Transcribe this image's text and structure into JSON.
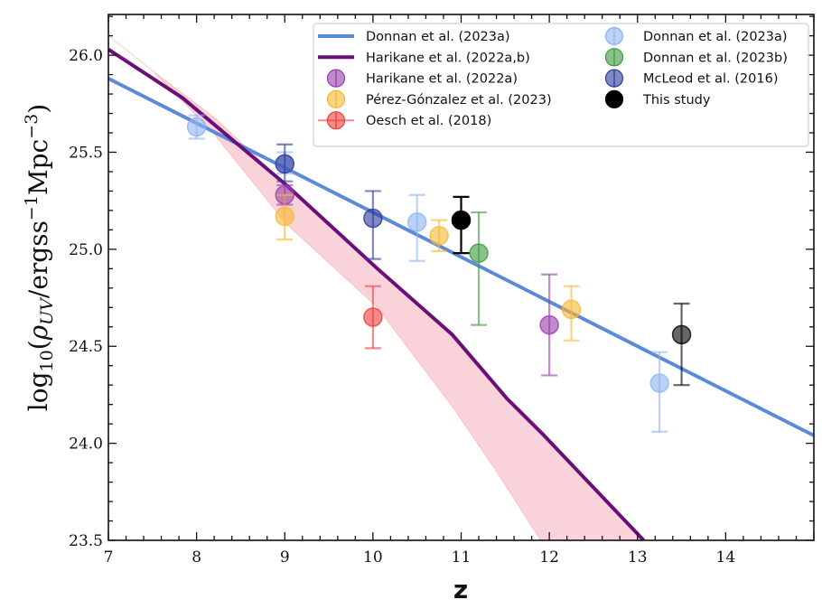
{
  "chart_data": {
    "type": "scatter",
    "title": "",
    "xlabel": "z",
    "ylabel": "log10(ρUV/ergss⁻¹Mpc⁻³)",
    "ylabel_parts": {
      "log": "log",
      "log_sub": "10",
      "open": "(",
      "rho": "ρ",
      "rho_sub": "UV",
      "unit": "/ergss",
      "exp1": "−1",
      "mpc": "Mpc",
      "exp2": "−3",
      "close": ")"
    },
    "xlim": [
      7,
      15
    ],
    "ylim": [
      23.5,
      26.21
    ],
    "xticks": [
      7,
      8,
      9,
      10,
      11,
      12,
      13,
      14
    ],
    "xtick_labels": [
      "7",
      "8",
      "9",
      "10",
      "11",
      "12",
      "13",
      "14"
    ],
    "yticks": [
      23.5,
      24.0,
      24.5,
      25.0,
      25.5,
      26.0
    ],
    "ytick_labels": [
      "23.5",
      "24.0",
      "24.5",
      "25.0",
      "25.5",
      "26.0"
    ],
    "grid": false,
    "legend_position": "top-right",
    "lines": [
      {
        "name": "Donnan et al. (2023a)",
        "color": "#5b8bd8",
        "points": [
          [
            7,
            25.88
          ],
          [
            15,
            24.04
          ]
        ]
      },
      {
        "name": "Harikane et al. (2022a,b)",
        "color": "#6a0f7a",
        "points": [
          [
            7,
            26.03
          ],
          [
            7.84,
            25.78
          ],
          [
            9.02,
            25.33
          ],
          [
            10.05,
            24.9
          ],
          [
            10.9,
            24.56
          ],
          [
            11.52,
            24.23
          ],
          [
            11.92,
            24.05
          ],
          [
            13.07,
            23.5
          ]
        ]
      }
    ],
    "band": {
      "name": "Harikane et al. (2022a,b) range",
      "color": "#f7b6c2",
      "upper": [
        [
          7,
          26.1
        ],
        [
          7.5,
          25.92
        ],
        [
          8.2,
          25.68
        ],
        [
          9.02,
          25.33
        ],
        [
          10.05,
          24.9
        ],
        [
          10.9,
          24.56
        ],
        [
          11.52,
          24.23
        ],
        [
          11.92,
          24.05
        ],
        [
          13.07,
          23.5
        ]
      ],
      "lower": [
        [
          7,
          26.1
        ],
        [
          7.5,
          25.92
        ],
        [
          8.17,
          25.61
        ],
        [
          9.02,
          25.13
        ],
        [
          10.05,
          24.7
        ],
        [
          10.9,
          24.19
        ],
        [
          11.41,
          23.85
        ],
        [
          11.9,
          23.5
        ]
      ]
    },
    "series": [
      {
        "name": "Harikane et al. (2022a)",
        "color": "#9a3cae",
        "points": [
          {
            "x": 9.0,
            "y": 25.28,
            "ylo": 25.23,
            "yhi": 25.33
          },
          {
            "x": 12.0,
            "y": 24.61,
            "ylo": 24.35,
            "yhi": 24.87
          }
        ]
      },
      {
        "name": "Pérez-Gónzalez et al. (2023)",
        "color": "#f7b733",
        "points": [
          {
            "x": 9.0,
            "y": 25.17,
            "ylo": 25.05,
            "yhi": 25.28
          },
          {
            "x": 10.75,
            "y": 25.07,
            "ylo": 24.99,
            "yhi": 25.15
          },
          {
            "x": 12.25,
            "y": 24.69,
            "ylo": 24.53,
            "yhi": 24.81
          }
        ]
      },
      {
        "name": "Oesch et al. (2018)",
        "color": "#f03a3a",
        "points": [
          {
            "x": 10.0,
            "y": 24.65,
            "ylo": 24.49,
            "yhi": 24.81
          }
        ]
      },
      {
        "name": "Donnan et al. (2023a)",
        "color": "#8fb3f0",
        "points": [
          {
            "x": 8.0,
            "y": 25.63,
            "ylo": 25.57,
            "yhi": 25.69
          },
          {
            "x": 9.0,
            "y": 25.44,
            "ylo": 25.39,
            "yhi": 25.5
          },
          {
            "x": 10.5,
            "y": 25.14,
            "ylo": 24.94,
            "yhi": 25.28
          },
          {
            "x": 13.25,
            "y": 24.31,
            "ylo": 24.06,
            "yhi": 24.47
          }
        ]
      },
      {
        "name": "Donnan et al. (2023b)",
        "color": "#3a9a3a",
        "points": [
          {
            "x": 11.2,
            "y": 24.98,
            "ylo": 24.61,
            "yhi": 25.19
          }
        ]
      },
      {
        "name": "McLeod et al. (2016)",
        "color": "#2d3a9e",
        "points": [
          {
            "x": 9.0,
            "y": 25.44,
            "ylo": 25.35,
            "yhi": 25.54
          },
          {
            "x": 10.0,
            "y": 25.16,
            "ylo": 24.95,
            "yhi": 25.3
          }
        ]
      },
      {
        "name": "This study",
        "color": "#000000",
        "points": [
          {
            "x": 11.0,
            "y": 25.15,
            "ylo": 24.98,
            "yhi": 25.27
          },
          {
            "x": 13.5,
            "y": 24.56,
            "ylo": 24.3,
            "yhi": 24.72
          }
        ]
      }
    ],
    "legend": [
      {
        "label": "Donnan et al. (2023a)",
        "kind": "line",
        "color": "#5b8bd8"
      },
      {
        "label": "Harikane et al. (2022a,b)",
        "kind": "line",
        "color": "#6a0f7a"
      },
      {
        "label": "Harikane et al. (2022a)",
        "kind": "marker",
        "color": "#9a3cae"
      },
      {
        "label": "Pérez-Gónzalez et al. (2023)",
        "kind": "marker",
        "color": "#f7b733"
      },
      {
        "label": "Oesch et al. (2018)",
        "kind": "marker-line",
        "color": "#f03a3a"
      },
      {
        "label": "Donnan et al. (2023a)",
        "kind": "marker",
        "color": "#8fb3f0"
      },
      {
        "label": "Donnan et al. (2023b)",
        "kind": "marker",
        "color": "#3a9a3a"
      },
      {
        "label": "McLeod et al. (2016)",
        "kind": "marker",
        "color": "#2d3a9e"
      },
      {
        "label": "This study",
        "kind": "marker-solid",
        "color": "#000000"
      }
    ]
  }
}
